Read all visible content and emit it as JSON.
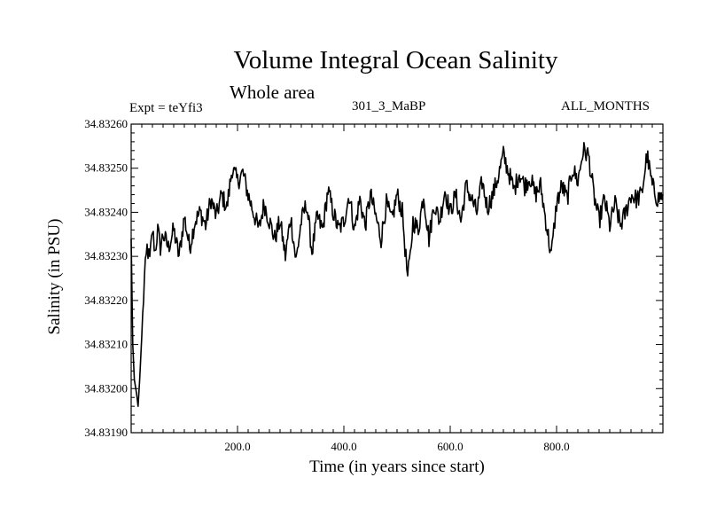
{
  "header": {
    "title": "Volume Integral Ocean Salinity",
    "subtitle": "Whole area",
    "experiment": "Expt = teYfi3",
    "run": "301_3_MaBP",
    "months": "ALL_MONTHS"
  },
  "chart_data": {
    "type": "line",
    "title": "Volume Integral Ocean Salinity",
    "subtitle": "Whole area",
    "xlabel": "Time (in years since start)",
    "ylabel": "Salinity (in PSU)",
    "xlim": [
      0,
      1000
    ],
    "ylim": [
      34.8319,
      34.8326
    ],
    "x_ticks": [
      200,
      400,
      600,
      800
    ],
    "x_tick_labels": [
      "200.0",
      "400.0",
      "600.0",
      "800.0"
    ],
    "y_ticks": [
      34.8319,
      34.832,
      34.8321,
      34.8322,
      34.8323,
      34.8324,
      34.8325,
      34.8326
    ],
    "y_tick_labels": [
      "34.83190",
      "34.83200",
      "34.83210",
      "34.83220",
      "34.83230",
      "34.83240",
      "34.83250",
      "34.83260"
    ],
    "grid": false,
    "series": [
      {
        "name": "Salinity",
        "x": [
          0,
          3,
          6,
          10,
          13,
          16,
          20,
          25,
          30,
          35,
          40,
          45,
          50,
          55,
          60,
          70,
          80,
          90,
          100,
          110,
          120,
          130,
          140,
          150,
          160,
          170,
          180,
          190,
          200,
          210,
          220,
          230,
          240,
          250,
          260,
          270,
          280,
          290,
          300,
          310,
          320,
          330,
          340,
          350,
          360,
          370,
          380,
          390,
          400,
          410,
          420,
          430,
          440,
          450,
          460,
          470,
          480,
          490,
          500,
          510,
          515,
          520,
          525,
          530,
          540,
          550,
          560,
          570,
          580,
          590,
          600,
          610,
          620,
          630,
          640,
          650,
          660,
          670,
          680,
          690,
          700,
          710,
          720,
          730,
          740,
          750,
          760,
          770,
          780,
          790,
          795,
          800,
          810,
          820,
          830,
          840,
          850,
          860,
          870,
          880,
          890,
          900,
          910,
          920,
          930,
          940,
          950,
          960,
          970,
          980,
          990,
          1000
        ],
        "y": [
          34.83234,
          34.8321,
          34.83202,
          34.83199,
          34.83196,
          34.83202,
          34.83212,
          34.83225,
          34.83232,
          34.83229,
          34.83236,
          34.83231,
          34.83236,
          34.83232,
          34.83235,
          34.83232,
          34.83236,
          34.8323,
          34.83239,
          34.83232,
          34.83238,
          34.8324,
          34.83237,
          34.83243,
          34.83239,
          34.83244,
          34.83241,
          34.8325,
          34.83247,
          34.83249,
          34.83244,
          34.8324,
          34.83236,
          34.83242,
          34.83238,
          34.83234,
          34.83238,
          34.8323,
          34.83239,
          34.83229,
          34.83238,
          34.83242,
          34.83231,
          34.83239,
          34.83236,
          34.83245,
          34.8324,
          34.83236,
          34.83238,
          34.83244,
          34.83236,
          34.83243,
          34.83237,
          34.83244,
          34.83239,
          34.83234,
          34.83242,
          34.83238,
          34.83244,
          34.8324,
          34.83232,
          34.83225,
          34.8323,
          34.83238,
          34.83236,
          34.83244,
          34.83234,
          34.83242,
          34.83238,
          34.83245,
          34.8324,
          34.83244,
          34.83238,
          34.83246,
          34.83243,
          34.8324,
          34.83247,
          34.83241,
          34.83244,
          34.83248,
          34.83253,
          34.83249,
          34.83245,
          34.83249,
          34.83246,
          34.83248,
          34.83244,
          34.83246,
          34.83238,
          34.8323,
          34.83236,
          34.83242,
          34.83246,
          34.83243,
          34.8325,
          34.83247,
          34.83254,
          34.83253,
          34.83244,
          34.83238,
          34.83243,
          34.83237,
          34.83242,
          34.83237,
          34.8324,
          34.83244,
          34.83243,
          34.83244,
          34.83253,
          34.83246,
          34.83243,
          34.83244
        ]
      }
    ]
  }
}
